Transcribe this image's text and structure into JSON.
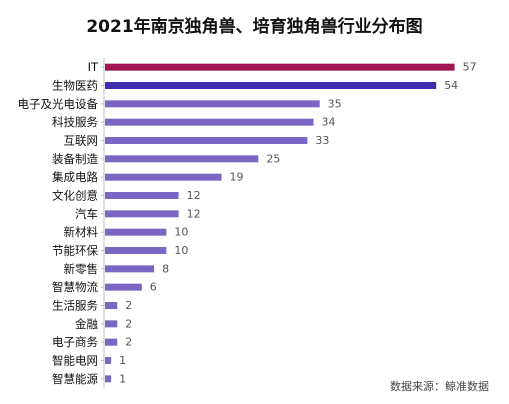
{
  "colors": {
    "highlight": "#9e1550",
    "second": "#3d2fb0",
    "default": "#7b66c4",
    "axis": "#bfbfbf"
  },
  "chart_data": {
    "type": "bar",
    "orientation": "horizontal",
    "title": "2021年南京独角兽、培育独角兽行业分布图",
    "source": "数据来源：鲸准数据",
    "categories": [
      "IT",
      "生物医药",
      "电子及光电设备",
      "科技服务",
      "互联网",
      "装备制造",
      "集成电路",
      "文化创意",
      "汽车",
      "新材料",
      "节能环保",
      "新零售",
      "智慧物流",
      "生活服务",
      "金融",
      "电子商务",
      "智能电网",
      "智慧能源"
    ],
    "values": [
      57,
      54,
      35,
      34,
      33,
      25,
      19,
      12,
      12,
      10,
      10,
      8,
      6,
      2,
      2,
      2,
      1,
      1
    ],
    "xlim": [
      0,
      60
    ],
    "grid": false,
    "legend": "none"
  }
}
